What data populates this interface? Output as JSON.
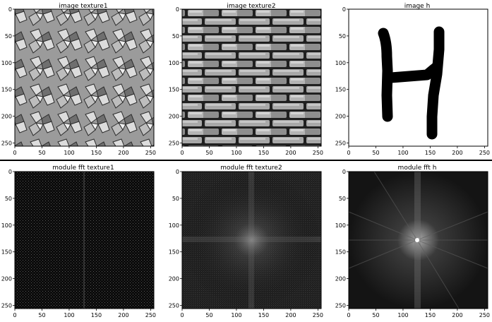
{
  "chart_data": [
    {
      "type": "heatmap",
      "title": "image texture1",
      "content": "grayscale tessellation tile texture",
      "xlim": [
        0,
        256
      ],
      "ylim": [
        256,
        0
      ],
      "xticks": [
        0,
        50,
        100,
        150,
        200,
        250
      ],
      "yticks": [
        0,
        50,
        100,
        150,
        200,
        250
      ],
      "grid": false
    },
    {
      "type": "heatmap",
      "title": "image texture2",
      "content": "grayscale stone brick wall texture",
      "xlim": [
        0,
        256
      ],
      "ylim": [
        256,
        0
      ],
      "xticks": [
        0,
        50,
        100,
        150,
        200,
        250
      ],
      "yticks": [
        0,
        50,
        100,
        150,
        200,
        250
      ],
      "grid": false
    },
    {
      "type": "heatmap",
      "title": "image h",
      "content": "hand-drawn black letter H on white",
      "xlim": [
        0,
        256
      ],
      "ylim": [
        256,
        0
      ],
      "xticks": [
        0,
        50,
        100,
        150,
        200,
        250
      ],
      "yticks": [
        0,
        50,
        100,
        150,
        200,
        250
      ],
      "grid": false
    },
    {
      "type": "heatmap",
      "title": "module fft texture1",
      "content": "FFT magnitude spectrum: dense regular grid of bright points on dark background",
      "xlim": [
        0,
        256
      ],
      "ylim": [
        256,
        0
      ],
      "xticks": [
        0,
        50,
        100,
        150,
        200,
        250
      ],
      "yticks": [
        0,
        50,
        100,
        150,
        200,
        250
      ],
      "grid": false
    },
    {
      "type": "heatmap",
      "title": "module fft texture2",
      "content": "FFT magnitude spectrum: noisy gray field with brighter central cross",
      "xlim": [
        0,
        256
      ],
      "ylim": [
        256,
        0
      ],
      "xticks": [
        0,
        50,
        100,
        150,
        200,
        250
      ],
      "yticks": [
        0,
        50,
        100,
        150,
        200,
        250
      ],
      "grid": false
    },
    {
      "type": "heatmap",
      "title": "module fft h",
      "content": "FFT magnitude spectrum: bright center with radial streaks and central vertical band",
      "xlim": [
        0,
        256
      ],
      "ylim": [
        256,
        0
      ],
      "xticks": [
        0,
        50,
        100,
        150,
        200,
        250
      ],
      "yticks": [
        0,
        50,
        100,
        150,
        200,
        250
      ],
      "grid": false
    }
  ],
  "colors": {
    "background": "#ffffff",
    "axis": "#000000",
    "fft_dark": "#0a0a0a",
    "image_mid_gray": "#9a9a9a"
  }
}
